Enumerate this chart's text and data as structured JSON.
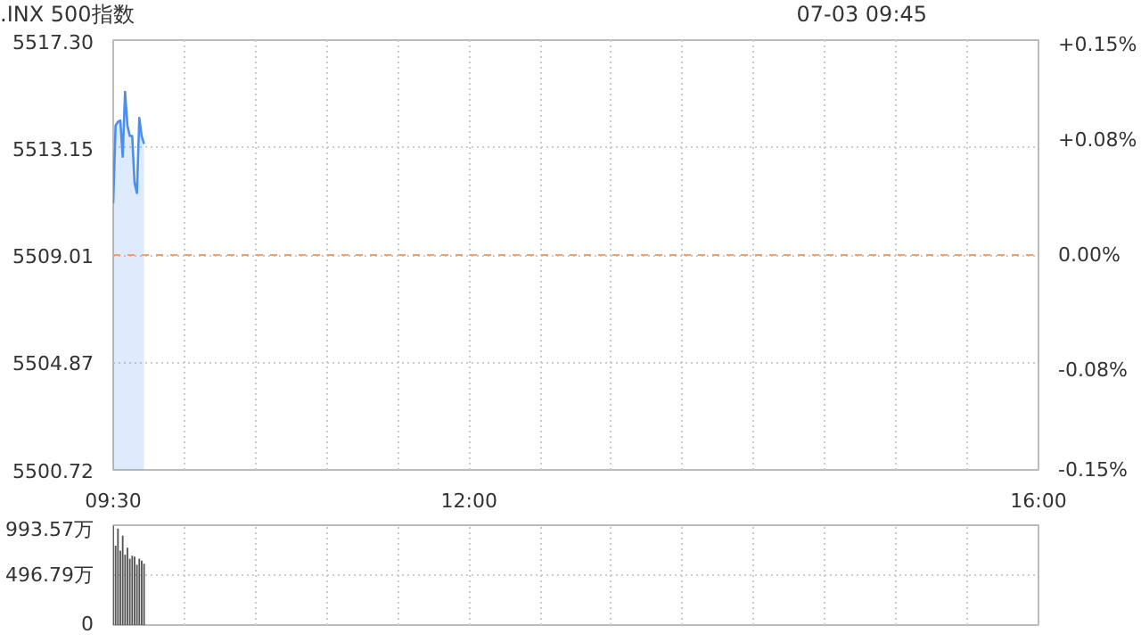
{
  "chart_data": [
    {
      "type": "line",
      "title": ".INX 500指数",
      "annotations": [
        "07-03 09:45"
      ],
      "x": [
        9.5,
        9.5167,
        9.5333,
        9.55,
        9.5667,
        9.5833,
        9.6,
        9.6167,
        9.6333,
        9.65,
        9.6667,
        9.6833,
        9.7,
        9.7167
      ],
      "series": [
        {
          "type": "area",
          "color": "#4a8ef0",
          "values": [
            5511.0,
            5514.0,
            5514.15,
            5514.2,
            5512.8,
            5515.3,
            5514.0,
            5513.6,
            5513.6,
            5511.8,
            5511.4,
            5514.3,
            5513.6,
            5513.3
          ]
        }
      ],
      "xlim": [
        9.5,
        16
      ],
      "xticks": [
        {
          "value": 9.5,
          "label": "09:30"
        },
        {
          "value": 10,
          "label": null
        },
        {
          "value": 10.5,
          "label": null
        },
        {
          "value": 11,
          "label": null
        },
        {
          "value": 11.5,
          "label": null
        },
        {
          "value": 12,
          "label": "12:00"
        },
        {
          "value": 12.5,
          "label": null
        },
        {
          "value": 13,
          "label": null
        },
        {
          "value": 13.5,
          "label": null
        },
        {
          "value": 14,
          "label": null
        },
        {
          "value": 14.5,
          "label": null
        },
        {
          "value": 15,
          "label": null
        },
        {
          "value": 15.5,
          "label": null
        },
        {
          "value": 16,
          "label": "16:00"
        }
      ],
      "ylim": [
        5500.72,
        5517.3
      ],
      "yticks": [
        {
          "value": 5500.72,
          "label": "5500.72"
        },
        {
          "value": 5504.87,
          "label": "5504.87"
        },
        {
          "value": 5509.01,
          "label": "5509.01"
        },
        {
          "value": 5513.15,
          "label": "5513.15"
        },
        {
          "value": 5517.3,
          "label": "5517.30"
        }
      ],
      "y2lim": [
        -0.15,
        0.15
      ],
      "y2ticks": [
        {
          "value": -0.15,
          "label": "-0.15%"
        },
        {
          "value": -0.08,
          "label": "-0.08%"
        },
        {
          "value": 0,
          "label": "0.00%"
        },
        {
          "value": 0.08,
          "label": "+0.08%"
        },
        {
          "value": 0.15,
          "label": "+0.15%"
        }
      ],
      "ref_lines": [
        {
          "axis": "y",
          "value": 5509.01,
          "color": "#f0a070",
          "line_style": "dashed"
        }
      ],
      "grid": true
    },
    {
      "type": "bar",
      "x": [
        9.5,
        9.5167,
        9.5333,
        9.55,
        9.5667,
        9.5833,
        9.6,
        9.6167,
        9.6333,
        9.65,
        9.6667,
        9.6833,
        9.7,
        9.7167
      ],
      "series": [
        {
          "color": "#555555",
          "values": [
            990,
            790,
            960,
            740,
            890,
            700,
            770,
            660,
            690,
            680,
            600,
            660,
            640,
            610
          ]
        }
      ],
      "xlim": [
        9.5,
        16
      ],
      "xticks": [
        9.5,
        10,
        10.5,
        11,
        11.5,
        12,
        12.5,
        13,
        13.5,
        14,
        14.5,
        15,
        15.5,
        16
      ],
      "ylim": [
        0,
        993.57
      ],
      "yticks": [
        0,
        {
          "value": 496.79,
          "label": "496.79万"
        },
        {
          "value": 993.57,
          "label": "993.57万"
        }
      ],
      "tick_labels": "y",
      "grid": true
    }
  ]
}
